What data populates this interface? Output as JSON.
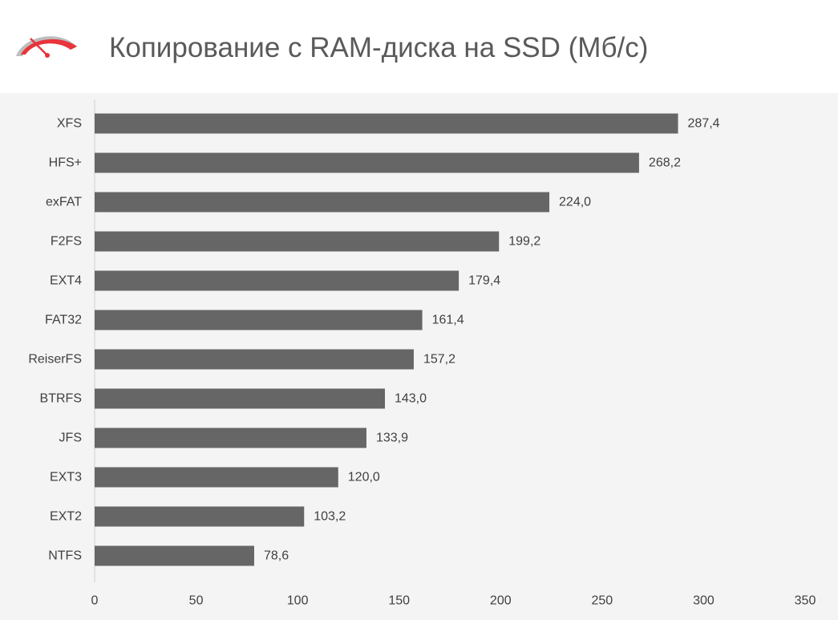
{
  "title": "Копирование с RAM-диска на SSD (Мб/с)",
  "logo_icon": "speedometer-gauge-icon",
  "colors": {
    "bar": "#666666",
    "axis": "#d0d0d0",
    "text": "#404040",
    "title": "#5a5a5a",
    "logo_red": "#e8343a",
    "logo_gray": "#bdbdbd",
    "background": "#f4f4f4",
    "header": "#ffffff"
  },
  "chart_data": {
    "type": "bar",
    "orientation": "horizontal",
    "title": "Копирование с RAM-диска на SSD (Мб/с)",
    "xlabel": "",
    "ylabel": "",
    "categories": [
      "XFS",
      "HFS+",
      "exFAT",
      "F2FS",
      "EXT4",
      "FAT32",
      "ReiserFS",
      "BTRFS",
      "JFS",
      "EXT3",
      "EXT2",
      "NTFS"
    ],
    "values": [
      287.4,
      268.2,
      224.0,
      199.2,
      179.4,
      161.4,
      157.2,
      143.0,
      133.9,
      120.0,
      103.2,
      78.6
    ],
    "value_labels": [
      "287,4",
      "268,2",
      "224,0",
      "199,2",
      "179,4",
      "161,4",
      "157,2",
      "143,0",
      "133,9",
      "120,0",
      "103,2",
      "78,6"
    ],
    "xlim": [
      0,
      350
    ],
    "xticks": [
      0,
      50,
      100,
      150,
      200,
      250,
      300,
      350
    ],
    "grid": false,
    "legend": "none"
  }
}
